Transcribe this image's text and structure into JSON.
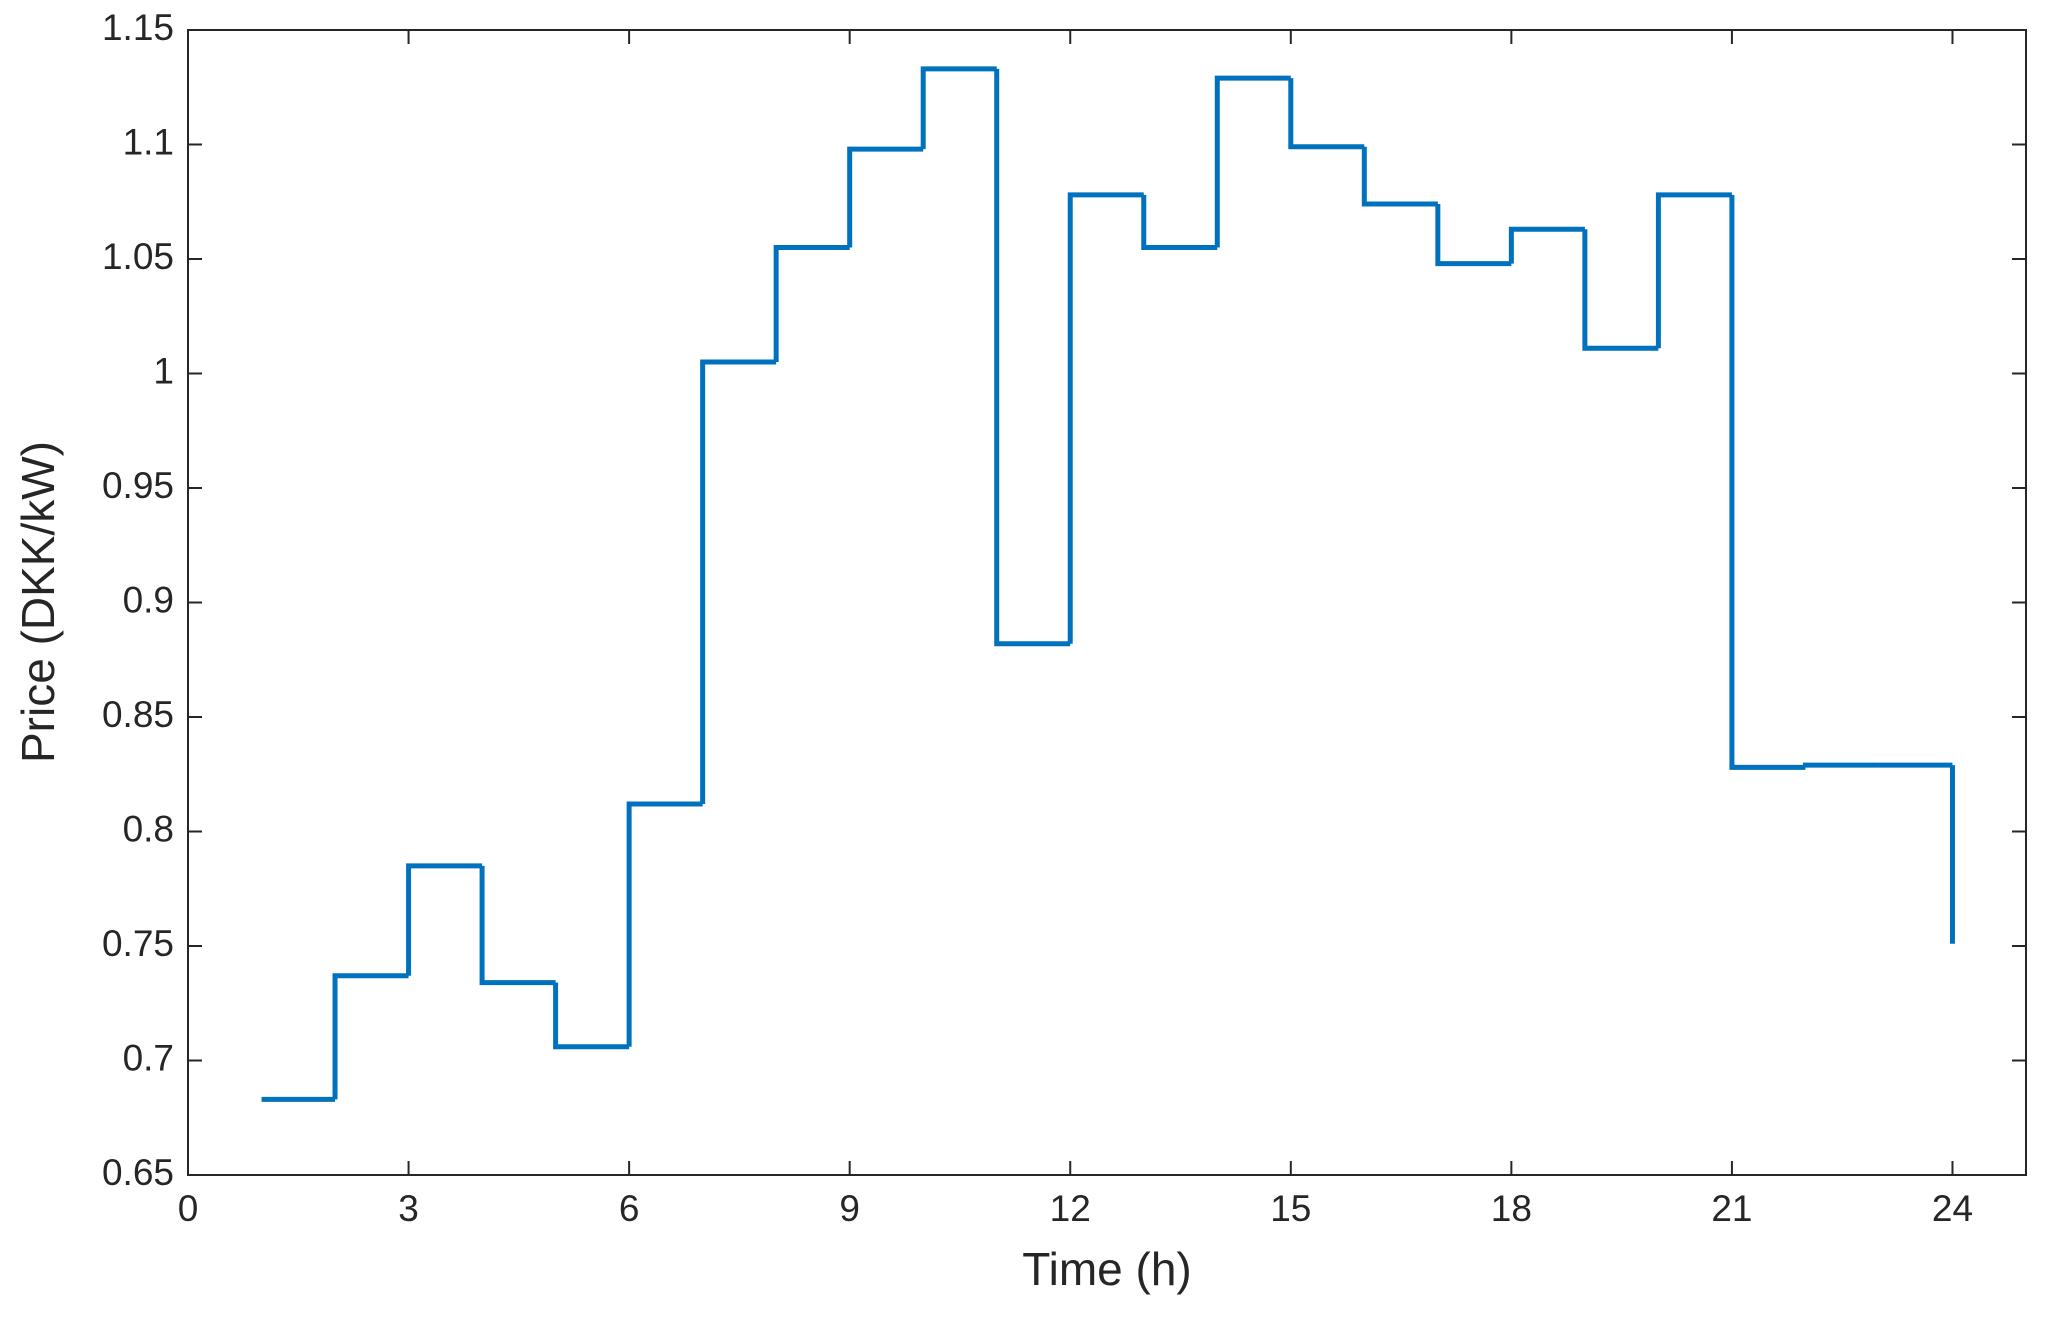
{
  "chart_data": {
    "type": "stairs",
    "xlabel": "Time (h)",
    "ylabel": "Price (DKK/kW)",
    "x": [
      1,
      2,
      3,
      4,
      5,
      6,
      7,
      8,
      9,
      10,
      11,
      12,
      13,
      14,
      15,
      16,
      17,
      18,
      19,
      20,
      21,
      22,
      23,
      24
    ],
    "series": [
      {
        "color": "#0072bd",
        "values": [
          0.683,
          0.737,
          0.785,
          0.734,
          0.706,
          0.812,
          1.005,
          1.055,
          1.098,
          1.133,
          0.882,
          1.078,
          1.055,
          1.129,
          1.099,
          1.074,
          1.048,
          1.063,
          1.011,
          1.078,
          0.828,
          0.829,
          0.829,
          0.751
        ]
      }
    ],
    "xlim": [
      0,
      25
    ],
    "xticks": [
      0,
      3,
      6,
      9,
      12,
      15,
      18,
      21,
      24
    ],
    "ylim": [
      0.65,
      1.15
    ],
    "yticks": [
      0.65,
      0.7,
      0.75,
      0.8,
      0.85,
      0.9,
      0.95,
      1,
      1.05,
      1.1,
      1.15
    ],
    "grid": false
  }
}
